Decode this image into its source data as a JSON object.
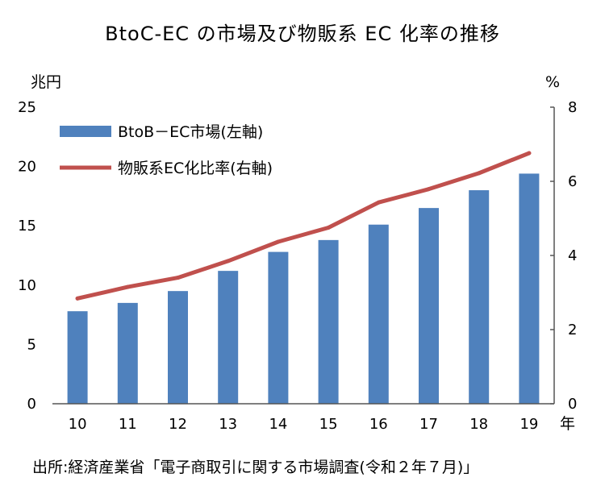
{
  "title": "BtoC-EC の市場及び物販系 EC 化率の推移",
  "source": "出所:経済産業省「電子商取引に関する市場調査(令和２年７月)」",
  "chart_data": {
    "type": "bar",
    "title": "BtoC-EC の市場及び物販系 EC 化率の推移",
    "categories": [
      "10",
      "11",
      "12",
      "13",
      "14",
      "15",
      "16",
      "17",
      "18",
      "19"
    ],
    "x_unit": "年",
    "y_left": {
      "unit": "兆円",
      "ylim": [
        0,
        25
      ],
      "ticks": [
        "0",
        "5",
        "10",
        "15",
        "20",
        "25"
      ]
    },
    "y_right": {
      "unit": "%",
      "ylim": [
        0,
        8
      ],
      "ticks": [
        "0",
        "2",
        "4",
        "6",
        "8"
      ]
    },
    "series": [
      {
        "name": "BtoB－EC市場(左軸)",
        "type": "bar",
        "axis": "left",
        "color": "#4f81bd",
        "values": [
          7.8,
          8.5,
          9.5,
          11.2,
          12.8,
          13.8,
          15.1,
          16.5,
          18.0,
          19.4
        ]
      },
      {
        "name": "物販系EC化比率(右軸)",
        "type": "line",
        "axis": "right",
        "color": "#c0504d",
        "values": [
          2.84,
          3.15,
          3.4,
          3.85,
          4.37,
          4.75,
          5.43,
          5.79,
          6.22,
          6.76
        ]
      }
    ],
    "grid": false,
    "legend": "top-left"
  }
}
